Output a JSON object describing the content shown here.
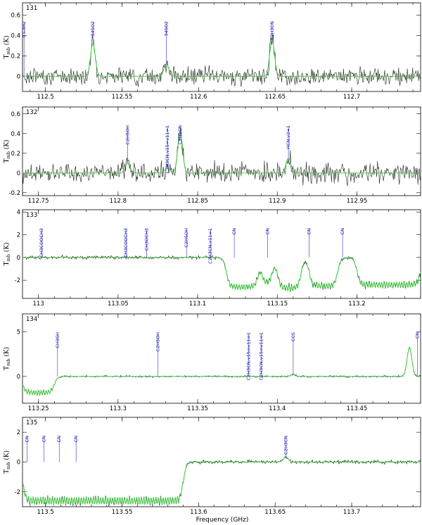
{
  "figure": {
    "xlabel": "Frequency (GHz)"
  },
  "colors": {
    "observed": "#222222",
    "model": "#33cc33",
    "line_markers": "#3333cc"
  },
  "chart_data": [
    {
      "type": "line",
      "panel": "131",
      "ylabel": "T_mb (K)",
      "xlim": [
        112.485,
        112.745
      ],
      "ylim": [
        -0.15,
        0.72
      ],
      "xticks": [
        112.5,
        112.55,
        112.6,
        112.65,
        112.7
      ],
      "yticks": [
        0,
        0.2,
        0.4,
        0.6
      ],
      "lines": [
        {
          "freq": 112.486,
          "label": "c-C3H2",
          "peak": 0.0
        },
        {
          "freq": 112.531,
          "label": "34SO2",
          "peak": 0.32
        },
        {
          "freq": 112.579,
          "label": "34SO2",
          "peak": 0.12
        },
        {
          "freq": 112.648,
          "label": "C2H3CN",
          "peak": 0.36
        }
      ],
      "baseline": 0.0,
      "noise": 0.04
    },
    {
      "type": "line",
      "panel": "132",
      "ylabel": "T_mb (K)",
      "xlim": [
        112.74,
        112.99
      ],
      "ylim": [
        -0.23,
        0.67
      ],
      "xticks": [
        112.75,
        112.8,
        112.85,
        112.9,
        112.95
      ],
      "yticks": [
        -0.2,
        0,
        0.2,
        0.4,
        0.6
      ],
      "lines": [
        {
          "freq": 112.806,
          "label": "C2H5OH",
          "peak": 0.1
        },
        {
          "freq": 112.831,
          "label": "C2H3CN,v15=v11=1",
          "peak": 0.05
        },
        {
          "freq": 112.839,
          "label": "C2H5CN",
          "peak": 0.42
        },
        {
          "freq": 112.907,
          "label": "HCN,v2=1",
          "peak": 0.15
        }
      ],
      "baseline": 0.0,
      "noise": 0.05
    },
    {
      "type": "line",
      "panel": "133",
      "ylabel": "T_mb (K)",
      "xlim": [
        112.99,
        113.24
      ],
      "ylim": [
        -3.6,
        4.2
      ],
      "xticks": [
        113,
        113.05,
        113.1,
        113.15,
        113.2
      ],
      "yticks": [
        -2,
        0,
        2,
        4
      ],
      "lines": [
        {
          "freq": 113.002,
          "label": "CH3COOCH3",
          "peak": 0.0
        },
        {
          "freq": 113.055,
          "label": "CH3COOCH3",
          "peak": 0.0
        },
        {
          "freq": 113.068,
          "label": "CH3OCH3",
          "peak": 0.0
        },
        {
          "freq": 113.093,
          "label": "C2H5OH",
          "peak": 0.0
        },
        {
          "freq": 113.108,
          "label": "C2H3CN,v11=1",
          "peak": 0.0
        },
        {
          "freq": 113.123,
          "label": "CN",
          "peak": 0.0
        },
        {
          "freq": 113.144,
          "label": "CN",
          "peak": 0.0
        },
        {
          "freq": 113.17,
          "label": "CN",
          "peak": 0.0
        },
        {
          "freq": 113.191,
          "label": "CN",
          "peak": 0.0
        }
      ],
      "absorption": [
        {
          "start": 113.118,
          "end": 113.138,
          "depth": -2.6
        },
        {
          "start": 113.14,
          "end": 113.147,
          "depth": -2.3
        },
        {
          "start": 113.15,
          "end": 113.165,
          "depth": -2.7
        },
        {
          "start": 113.17,
          "end": 113.188,
          "depth": -2.5
        },
        {
          "start": 113.2,
          "end": 113.24,
          "depth": -2.4
        }
      ],
      "baseline": 0.0,
      "noise": 0.08
    },
    {
      "type": "line",
      "panel": "134",
      "ylabel": "T_mb (K)",
      "xlim": [
        113.24,
        113.49
      ],
      "ylim": [
        -3.0,
        7.0
      ],
      "xticks": [
        113.25,
        113.3,
        113.35,
        113.4,
        113.45
      ],
      "yticks": [
        0,
        5
      ],
      "lines": [
        {
          "freq": 113.262,
          "label": "CH3SH",
          "peak": 0.0
        },
        {
          "freq": 113.325,
          "label": "C2H5OH",
          "peak": 0.0
        },
        {
          "freq": 113.382,
          "label": "C2H3CN,v15=v11=1",
          "peak": 0.0
        },
        {
          "freq": 113.39,
          "label": "C2H3CN,v15=v11=1",
          "peak": 0.0
        },
        {
          "freq": 113.41,
          "label": "CCS",
          "peak": 0.25
        },
        {
          "freq": 113.488,
          "label": "CN",
          "peak": 0.0
        }
      ],
      "absorption": [
        {
          "start": 113.24,
          "end": 113.26,
          "depth": -1.8
        }
      ],
      "emission_peak": {
        "freq": 113.483,
        "value": 3.2
      },
      "baseline": 0.0,
      "noise": 0.05
    },
    {
      "type": "line",
      "panel": "135",
      "ylabel": "T_mb (K)",
      "xlim": [
        113.485,
        113.745
      ],
      "ylim": [
        -3.0,
        3.0
      ],
      "xticks": [
        113.5,
        113.55,
        113.6,
        113.65,
        113.7
      ],
      "yticks": [
        -2,
        0,
        2
      ],
      "lines": [
        {
          "freq": 113.488,
          "label": "CN",
          "peak": 0.0
        },
        {
          "freq": 113.499,
          "label": "CN",
          "peak": 0.0
        },
        {
          "freq": 113.509,
          "label": "CN",
          "peak": 0.0
        },
        {
          "freq": 113.52,
          "label": "CN",
          "peak": 0.0
        },
        {
          "freq": 113.657,
          "label": "C2H3CN",
          "peak": 0.35
        }
      ],
      "absorption": [
        {
          "start": 113.485,
          "end": 113.59,
          "depth": -2.6
        }
      ],
      "baseline": 0.0,
      "noise": 0.06
    }
  ]
}
